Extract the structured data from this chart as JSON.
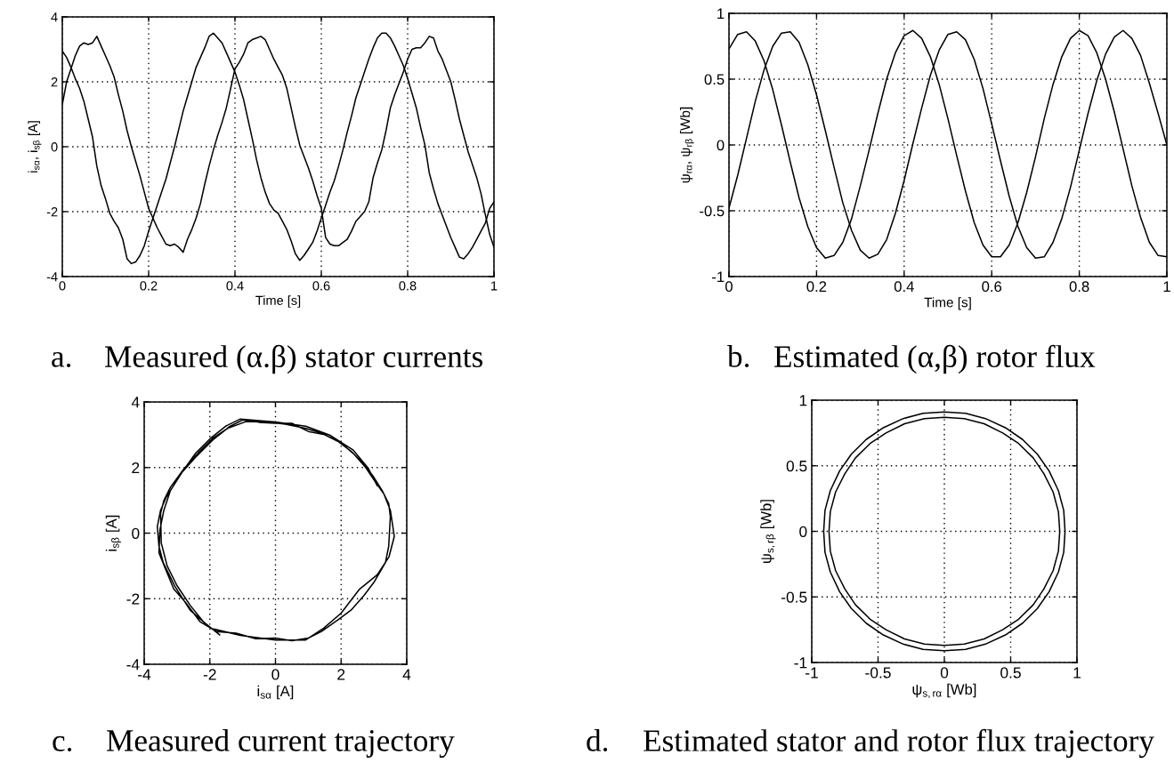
{
  "chart_data": [
    {
      "type": "line",
      "xlabel": "Time [s]",
      "ylabel": "i$_{sα}$, i$_{sβ}$ [A]",
      "annotations": [
        "a.",
        "Measured (α.β) stator currents"
      ],
      "x": [
        0,
        0.01,
        0.02,
        0.03,
        0.04,
        0.05,
        0.06,
        0.07,
        0.08,
        0.09,
        0.1,
        0.11,
        0.12,
        0.13,
        0.14,
        0.15,
        0.16,
        0.17,
        0.18,
        0.19,
        0.2,
        0.21,
        0.22,
        0.23,
        0.24,
        0.25,
        0.26,
        0.27,
        0.28,
        0.29,
        0.3,
        0.31,
        0.32,
        0.33,
        0.34,
        0.35,
        0.36,
        0.37,
        0.38,
        0.39,
        0.4,
        0.41,
        0.42,
        0.43,
        0.44,
        0.45,
        0.46,
        0.47,
        0.48,
        0.49,
        0.5,
        0.51,
        0.52,
        0.53,
        0.54,
        0.55,
        0.56,
        0.57,
        0.58,
        0.59,
        0.6,
        0.61,
        0.62,
        0.63,
        0.64,
        0.65,
        0.66,
        0.67,
        0.68,
        0.69,
        0.7,
        0.71,
        0.72,
        0.73,
        0.74,
        0.75,
        0.76,
        0.77,
        0.78,
        0.79,
        0.8,
        0.81,
        0.82,
        0.83,
        0.84,
        0.85,
        0.86,
        0.87,
        0.88,
        0.89,
        0.9,
        0.91,
        0.92,
        0.93,
        0.94,
        0.95,
        0.96,
        0.97,
        0.98,
        0.99,
        1
      ],
      "series": [
        {
          "color": "#000000",
          "values": [
            2.95,
            2.75,
            2.45,
            2.1,
            1.8,
            1.4,
            0.85,
            0.3,
            -0.6,
            -1.2,
            -1.6,
            -2.05,
            -2.3,
            -2.5,
            -2.85,
            -3.45,
            -3.6,
            -3.55,
            -3.35,
            -3.05,
            -2.6,
            -2.2,
            -1.8,
            -1.4,
            -1.0,
            -0.5,
            0.0,
            0.55,
            1.1,
            1.55,
            2.0,
            2.45,
            2.75,
            3.05,
            3.4,
            3.5,
            3.35,
            3.2,
            2.9,
            2.6,
            2.3,
            1.9,
            1.45,
            0.85,
            0.25,
            -0.4,
            -0.95,
            -1.4,
            -1.75,
            -1.95,
            -2.05,
            -2.3,
            -2.55,
            -2.9,
            -3.3,
            -3.5,
            -3.35,
            -3.15,
            -2.95,
            -2.6,
            -2.2,
            -1.8,
            -1.4,
            -1.05,
            -0.6,
            -0.1,
            0.45,
            0.95,
            1.5,
            1.9,
            2.3,
            2.7,
            3.05,
            3.35,
            3.5,
            3.5,
            3.35,
            3.1,
            2.8,
            2.5,
            2.1,
            1.65,
            1.2,
            0.6,
            0.05,
            -0.8,
            -1.3,
            -1.75,
            -2.1,
            -2.45,
            -2.8,
            -3.1,
            -3.4,
            -3.45,
            -3.3,
            -3.1,
            -2.85,
            -2.6,
            -2.35,
            -1.9,
            -1.7
          ]
        },
        {
          "color": "#000000",
          "values": [
            1.3,
            2.0,
            2.4,
            2.8,
            3.1,
            3.2,
            3.15,
            3.2,
            3.4,
            3.1,
            2.8,
            2.5,
            2.15,
            1.6,
            1.1,
            0.5,
            0.0,
            -0.45,
            -0.9,
            -1.4,
            -1.9,
            -2.2,
            -2.5,
            -2.75,
            -3.0,
            -3.05,
            -3.0,
            -3.1,
            -3.25,
            -2.85,
            -2.55,
            -2.2,
            -1.75,
            -1.15,
            -0.6,
            -0.1,
            0.35,
            0.75,
            1.2,
            1.8,
            2.4,
            2.6,
            2.85,
            3.2,
            3.3,
            3.35,
            3.4,
            3.3,
            3.0,
            2.7,
            2.45,
            2.2,
            1.8,
            1.2,
            0.6,
            0.05,
            -0.3,
            -0.65,
            -1.05,
            -1.5,
            -1.9,
            -2.8,
            -3.0,
            -3.05,
            -3.05,
            -2.95,
            -2.85,
            -2.6,
            -2.3,
            -2.15,
            -2.0,
            -1.7,
            -0.95,
            -0.5,
            -0.1,
            0.5,
            1.2,
            1.6,
            1.95,
            2.3,
            2.7,
            3.0,
            3.05,
            3.05,
            3.2,
            3.4,
            3.35,
            2.95,
            2.7,
            2.35,
            2.0,
            1.45,
            0.85,
            0.35,
            -0.15,
            -0.55,
            -0.95,
            -1.45,
            -2.1,
            -2.7,
            -3.1
          ]
        }
      ],
      "xlim": [
        0,
        1
      ],
      "ylim": [
        -4,
        4
      ],
      "xticks": [
        0,
        0.2,
        0.4,
        0.6,
        0.8,
        1
      ],
      "yticks": [
        -4,
        -2,
        0,
        2,
        4
      ],
      "grid": true,
      "line_style": "solid"
    },
    {
      "type": "line",
      "xlabel": "Time [s]",
      "ylabel": "ψ$_{rα}$, ψ$_{rβ}$ [Wb]",
      "annotations": [
        "b.",
        "Estimated (α,β) rotor flux"
      ],
      "x": [
        0,
        0.02,
        0.04,
        0.06,
        0.08,
        0.1,
        0.12,
        0.14,
        0.16,
        0.18,
        0.2,
        0.22,
        0.24,
        0.26,
        0.28,
        0.3,
        0.32,
        0.34,
        0.36,
        0.38,
        0.4,
        0.42,
        0.44,
        0.46,
        0.48,
        0.5,
        0.52,
        0.54,
        0.56,
        0.58,
        0.6,
        0.62,
        0.64,
        0.66,
        0.68,
        0.7,
        0.72,
        0.74,
        0.76,
        0.78,
        0.8,
        0.82,
        0.84,
        0.86,
        0.88,
        0.9,
        0.92,
        0.94,
        0.96,
        0.98,
        1
      ],
      "series": [
        {
          "color": "#000000",
          "values": [
            0.73,
            0.84,
            0.86,
            0.79,
            0.64,
            0.42,
            0.15,
            -0.13,
            -0.4,
            -0.62,
            -0.78,
            -0.86,
            -0.84,
            -0.74,
            -0.56,
            -0.31,
            -0.04,
            0.24,
            0.5,
            0.7,
            0.83,
            0.87,
            0.81,
            0.67,
            0.46,
            0.2,
            -0.08,
            -0.35,
            -0.59,
            -0.76,
            -0.85,
            -0.85,
            -0.76,
            -0.59,
            -0.36,
            -0.09,
            0.2,
            0.46,
            0.67,
            0.81,
            0.87,
            0.83,
            0.7,
            0.5,
            0.25,
            -0.03,
            -0.31,
            -0.55,
            -0.74,
            -0.84,
            -0.85
          ]
        },
        {
          "color": "#000000",
          "values": [
            -0.48,
            -0.23,
            0.05,
            0.33,
            0.57,
            0.75,
            0.85,
            0.86,
            0.78,
            0.61,
            0.38,
            0.11,
            -0.17,
            -0.44,
            -0.65,
            -0.8,
            -0.86,
            -0.83,
            -0.72,
            -0.52,
            -0.27,
            0.01,
            0.28,
            0.53,
            0.72,
            0.84,
            0.86,
            0.8,
            0.65,
            0.43,
            0.16,
            -0.12,
            -0.39,
            -0.62,
            -0.78,
            -0.86,
            -0.85,
            -0.74,
            -0.56,
            -0.32,
            -0.04,
            0.24,
            0.49,
            0.69,
            0.82,
            0.87,
            0.81,
            0.68,
            0.47,
            0.24,
            0.0
          ]
        }
      ],
      "xlim": [
        0,
        1
      ],
      "ylim": [
        -1,
        1
      ],
      "xticks": [
        0,
        0.2,
        0.4,
        0.6,
        0.8,
        1
      ],
      "yticks": [
        -1,
        -0.5,
        0,
        0.5,
        1
      ],
      "grid": true,
      "line_style": "solid"
    },
    {
      "type": "line",
      "xlabel": "i$_{sα}$ [A]",
      "ylabel": "i$_{sβ}$ [A]",
      "annotations": [
        "c.",
        "Measured current trajectory"
      ],
      "series": [
        {
          "color": "#000000",
          "x": [
            3.1,
            2.82,
            2.37,
            1.65,
            0.92,
            0.0,
            -1.07,
            -1.52,
            -1.97,
            -2.43,
            -2.88,
            -3.33,
            -3.5,
            -3.6,
            -3.55,
            -3.42,
            -3.06,
            -2.6,
            -1.97,
            -1.07,
            0.0,
            0.92,
            1.47,
            2.0,
            2.55,
            3.1,
            3.46,
            3.62,
            3.5,
            3.3,
            3.05,
            2.75,
            2.4,
            2.0,
            1.5,
            1.0,
            0.5,
            0.0,
            -0.5,
            -1.0,
            -1.4,
            -1.9,
            -2.4,
            -2.85,
            -3.2,
            -3.4,
            -3.52,
            -3.55,
            -3.35,
            -3.1,
            -2.75,
            -2.3,
            -1.8,
            -1.2,
            -0.6,
            0.0,
            0.5,
            1.0,
            1.4,
            1.9,
            2.3,
            2.7,
            3.0,
            3.35,
            3.45,
            3.5,
            3.45,
            3.25,
            3.0,
            2.7,
            2.3,
            1.9,
            1.4,
            0.9,
            0.3,
            -0.3,
            -0.9,
            -1.45,
            -1.9,
            -2.35,
            -2.8,
            -3.2,
            -3.4,
            -3.5,
            -3.48,
            -3.3,
            -3.0,
            -2.6,
            -2.2,
            -1.7
          ],
          "values": [
            1.45,
            1.99,
            2.53,
            2.99,
            3.26,
            3.39,
            3.48,
            3.26,
            2.9,
            2.44,
            1.81,
            1.09,
            0.7,
            0.2,
            -0.4,
            -0.9,
            -1.63,
            -2.35,
            -2.9,
            -3.12,
            -3.26,
            -3.26,
            -2.9,
            -2.44,
            -1.72,
            -1.27,
            -0.72,
            -0.1,
            0.7,
            1.2,
            1.55,
            2.0,
            2.4,
            2.75,
            3.0,
            3.1,
            3.35,
            3.35,
            3.38,
            3.45,
            3.25,
            2.85,
            2.35,
            1.85,
            1.3,
            0.7,
            0.1,
            -0.6,
            -1.1,
            -1.7,
            -2.1,
            -2.7,
            -3.0,
            -3.05,
            -3.22,
            -3.2,
            -3.28,
            -3.2,
            -3.0,
            -2.65,
            -2.35,
            -1.9,
            -1.5,
            -0.9,
            -0.4,
            0.5,
            0.9,
            1.3,
            1.7,
            2.1,
            2.5,
            2.8,
            3.05,
            3.2,
            3.32,
            3.4,
            3.4,
            3.2,
            2.9,
            2.45,
            1.95,
            1.4,
            1.0,
            0.6,
            -0.3,
            -1.0,
            -1.6,
            -2.2,
            -2.7,
            -3.1
          ]
        }
      ],
      "xlim": [
        -4,
        4
      ],
      "ylim": [
        -4,
        4
      ],
      "xticks": [
        -4,
        -2,
        0,
        2,
        4
      ],
      "yticks": [
        -4,
        -2,
        0,
        2,
        4
      ],
      "grid": true,
      "line_style": "solid"
    },
    {
      "type": "line",
      "xlabel": "ψ$_{s,rα}$ [Wb]",
      "ylabel": "ψ$_{s,rβ}$ [Wb]",
      "annotations": [
        "d.",
        "Estimated stator and rotor flux trajectory"
      ],
      "series": [
        {
          "color": "#000000",
          "x": [
            0.79,
            0.86,
            0.9,
            0.91,
            0.9,
            0.86,
            0.79,
            0.7,
            0.59,
            0.46,
            0.31,
            0.16,
            0,
            -0.16,
            -0.31,
            -0.46,
            -0.59,
            -0.7,
            -0.79,
            -0.86,
            -0.9,
            -0.91,
            -0.9,
            -0.86,
            -0.79,
            -0.7,
            -0.59,
            -0.46,
            -0.31,
            -0.16,
            0,
            0.16,
            0.31,
            0.46,
            0.59,
            0.7,
            0.79,
            0.86,
            0.9,
            0.91,
            0.9,
            0.86,
            0.79
          ],
          "values": [
            -0.46,
            -0.31,
            -0.16,
            0,
            0.16,
            0.31,
            0.46,
            0.59,
            0.7,
            0.79,
            0.86,
            0.9,
            0.91,
            0.9,
            0.86,
            0.79,
            0.7,
            0.59,
            0.46,
            0.31,
            0.16,
            0,
            -0.16,
            -0.31,
            -0.46,
            -0.59,
            -0.7,
            -0.79,
            -0.86,
            -0.9,
            -0.91,
            -0.9,
            -0.86,
            -0.79,
            -0.7,
            -0.59,
            -0.46,
            -0.31,
            -0.16,
            0,
            0.16,
            0.31,
            0.46
          ]
        },
        {
          "color": "#000000",
          "x": [
            0.75,
            0.82,
            0.86,
            0.87,
            0.86,
            0.82,
            0.75,
            0.67,
            0.56,
            0.44,
            0.3,
            0.15,
            0,
            -0.15,
            -0.3,
            -0.44,
            -0.56,
            -0.67,
            -0.75,
            -0.82,
            -0.86,
            -0.87,
            -0.86,
            -0.82,
            -0.75,
            -0.67,
            -0.56,
            -0.44,
            -0.3,
            -0.15,
            0,
            0.15,
            0.3,
            0.44,
            0.56,
            0.67,
            0.75,
            0.82,
            0.86,
            0.87,
            0.86,
            0.82,
            0.75
          ],
          "values": [
            -0.44,
            -0.3,
            -0.15,
            0,
            0.15,
            0.3,
            0.44,
            0.56,
            0.67,
            0.75,
            0.82,
            0.86,
            0.87,
            0.86,
            0.82,
            0.75,
            0.67,
            0.56,
            0.44,
            0.3,
            0.15,
            0,
            -0.15,
            -0.3,
            -0.44,
            -0.56,
            -0.67,
            -0.75,
            -0.82,
            -0.86,
            -0.87,
            -0.86,
            -0.82,
            -0.75,
            -0.67,
            -0.56,
            -0.44,
            -0.3,
            -0.15,
            0,
            0.15,
            0.3,
            0.44
          ]
        }
      ],
      "xlim": [
        -1,
        1
      ],
      "ylim": [
        -1,
        1
      ],
      "xticks": [
        -1,
        -0.5,
        0,
        0.5,
        1
      ],
      "yticks": [
        -1,
        -0.5,
        0,
        0.5,
        1
      ],
      "grid": true,
      "line_style": "solid"
    }
  ]
}
